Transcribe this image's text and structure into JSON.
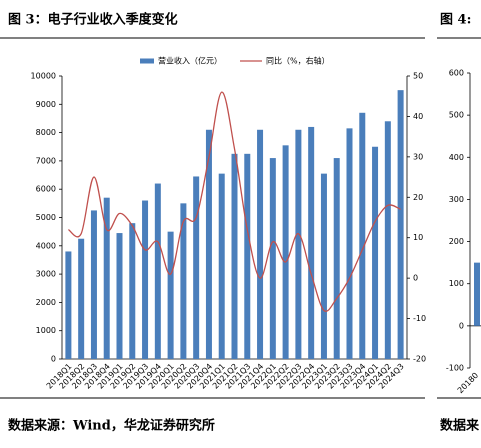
{
  "header": {
    "left_title": "图 3：电子行业收入季度变化",
    "right_title": "图 4:"
  },
  "chart_data": [
    {
      "type": "bar_line",
      "categories": [
        "2018Q1",
        "2018Q2",
        "2018Q3",
        "2018Q4",
        "2019Q1",
        "2019Q2",
        "2019Q3",
        "2019Q4",
        "2020Q1",
        "2020Q2",
        "2020Q3",
        "2020Q4",
        "2021Q1",
        "2021Q2",
        "2021Q3",
        "2021Q4",
        "2022Q1",
        "2022Q2",
        "2022Q3",
        "2022Q4",
        "2023Q1",
        "2023Q2",
        "2023Q3",
        "2023Q4",
        "2024Q1",
        "2024Q2",
        "2024Q3"
      ],
      "series": [
        {
          "name": "营业收入（亿元）",
          "color": "#4a7ebb",
          "kind": "bar",
          "values": [
            3800,
            4250,
            5250,
            5700,
            4450,
            4800,
            5600,
            6200,
            4500,
            5500,
            6450,
            8100,
            6550,
            7250,
            7250,
            8100,
            7100,
            7550,
            8100,
            8200,
            6550,
            7100,
            8150,
            8700,
            7500,
            8400,
            9500
          ]
        },
        {
          "name": "同比（%，右轴）",
          "color": "#c0504d",
          "kind": "line",
          "axis": "y2",
          "values": [
            12,
            11,
            25,
            12,
            16,
            13,
            7,
            9,
            1,
            14,
            15,
            30,
            46,
            32,
            12,
            0,
            9,
            4,
            11,
            1,
            -8,
            -5,
            0,
            7,
            14,
            18,
            17
          ]
        }
      ],
      "ylim": [
        0,
        10000
      ],
      "yticks": [
        0,
        1000,
        2000,
        3000,
        4000,
        5000,
        6000,
        7000,
        8000,
        9000,
        10000
      ],
      "y2lim": [
        -20,
        50
      ],
      "y2ticks": [
        -20,
        -10,
        0,
        10,
        20,
        30,
        40,
        50
      ]
    },
    {
      "type": "bar",
      "categories": [
        "20180"
      ],
      "values": [
        150
      ],
      "color": "#4a7ebb",
      "ylim": [
        -100,
        600
      ],
      "yticks": [
        -100,
        0,
        100,
        200,
        300,
        400,
        500,
        600
      ]
    }
  ],
  "footer": {
    "left_source": "数据来源：Wind，华龙证券研究所",
    "right_source": "数据来"
  }
}
